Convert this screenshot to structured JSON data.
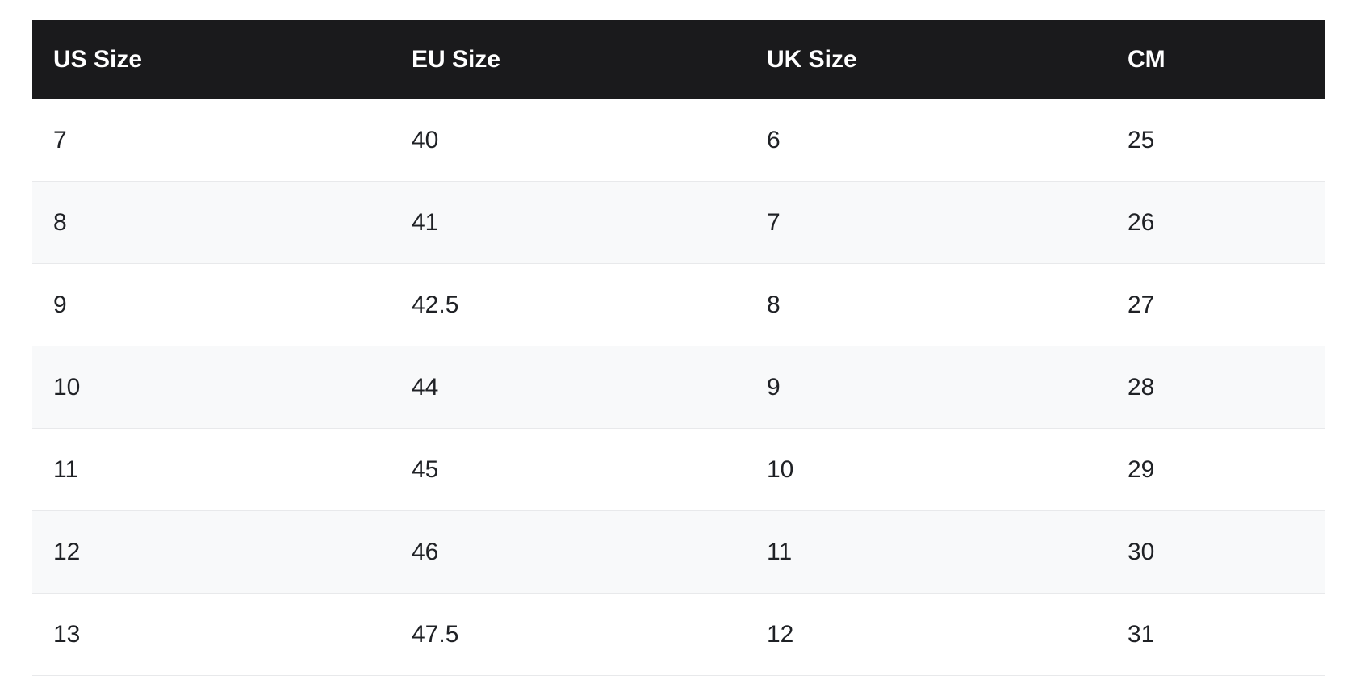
{
  "page": {
    "background": "#ffffff"
  },
  "table": {
    "title": "shoe-size-conversion-table",
    "columns": [
      {
        "key": "us",
        "label": "US Size"
      },
      {
        "key": "eu",
        "label": "EU Size"
      },
      {
        "key": "uk",
        "label": "UK Size"
      },
      {
        "key": "cm",
        "label": "CM"
      }
    ],
    "rows": [
      {
        "us": "7",
        "eu": "40",
        "uk": "6",
        "cm": "25"
      },
      {
        "us": "8",
        "eu": "41",
        "uk": "7",
        "cm": "26"
      },
      {
        "us": "9",
        "eu": "42.5",
        "uk": "8",
        "cm": "27"
      },
      {
        "us": "10",
        "eu": "44",
        "uk": "9",
        "cm": "28"
      },
      {
        "us": "11",
        "eu": "45",
        "uk": "10",
        "cm": "29"
      },
      {
        "us": "12",
        "eu": "46",
        "uk": "11",
        "cm": "30"
      },
      {
        "us": "13",
        "eu": "47.5",
        "uk": "12",
        "cm": "31"
      }
    ],
    "colors": {
      "header_bg": "#1a1a1c",
      "header_text": "#ffffff",
      "row_bg": "#ffffff",
      "row_alt_bg": "#f8f9fa",
      "border": "#e8e9eb",
      "text": "#1f2125"
    }
  }
}
